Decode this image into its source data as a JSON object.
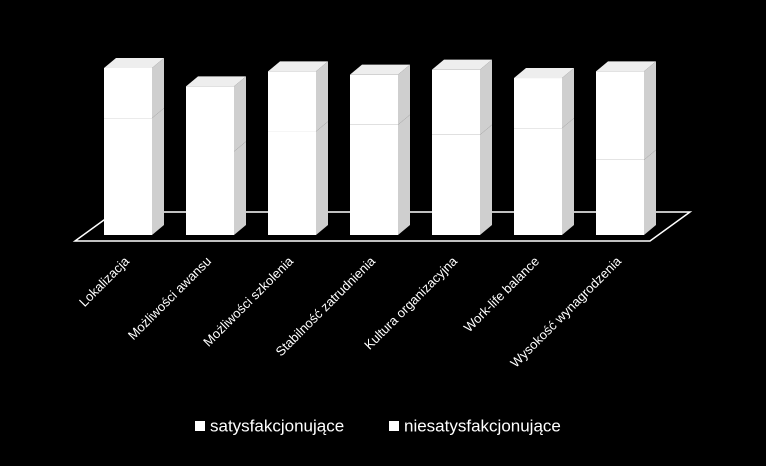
{
  "chart_data": {
    "type": "bar3d",
    "stacked": true,
    "categories": [
      "Lokalizacja",
      "Możliwości awansu",
      "Możliwości szkolenia",
      "Stabilność zatrudnienia",
      "Kultura organizacyjna",
      "Work-life balance",
      "Wysokość wynagrodzenia"
    ],
    "series": [
      {
        "name": "satysfakcjonujące",
        "color": "#ffffff",
        "values": [
          70,
          50,
          62,
          66,
          60,
          64,
          45
        ]
      },
      {
        "name": "niesatysfakcjonujące",
        "color": "#ffffff",
        "values": [
          30,
          39,
          36,
          30,
          39,
          30,
          53
        ]
      }
    ],
    "ylim": [
      0,
      100
    ],
    "legend": "bottom"
  }
}
